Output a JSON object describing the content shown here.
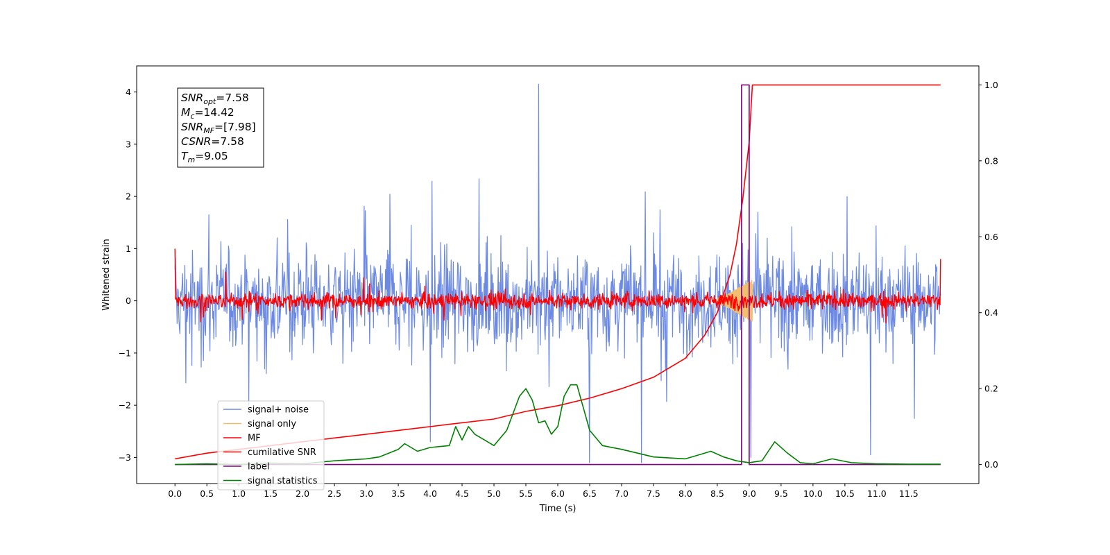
{
  "chart_data": {
    "type": "line",
    "title": "",
    "xlabel": "Time (s)",
    "ylabel": "Whitened strain",
    "ylabel_right": "",
    "xlim": [
      -0.6,
      12.6
    ],
    "ylim": [
      -3.5,
      4.5
    ],
    "ylim_right": [
      -0.05,
      1.05
    ],
    "x_ticks": [
      0.0,
      0.5,
      1.0,
      1.5,
      2.0,
      2.5,
      3.0,
      3.5,
      4.0,
      4.5,
      5.0,
      5.5,
      6.0,
      6.5,
      7.0,
      7.5,
      8.0,
      8.5,
      9.0,
      9.5,
      10.0,
      10.5,
      11.0,
      11.5
    ],
    "x_tick_labels": [
      "0.0",
      "0.5",
      "1.0",
      "1.5",
      "2.0",
      "2.5",
      "3.0",
      "3.5",
      "4.0",
      "4.5",
      "5.0",
      "5.5",
      "6.0",
      "6.5",
      "7.0",
      "7.5",
      "8.0",
      "8.5",
      "9.0",
      "9.5",
      "10.0",
      "10.5",
      "11.0",
      "11.5"
    ],
    "y_ticks": [
      -3,
      -2,
      -1,
      0,
      1,
      2,
      3,
      4
    ],
    "y_tick_labels": [
      "−3",
      "−2",
      "−1",
      "0",
      "1",
      "2",
      "3",
      "4"
    ],
    "y_ticks_right": [
      0.0,
      0.2,
      0.4,
      0.6,
      0.8,
      1.0
    ],
    "y_tick_labels_right": [
      "0.0",
      "0.2",
      "0.4",
      "0.6",
      "0.8",
      "1.0"
    ],
    "grid": false,
    "legend_placement": "lower-left",
    "annotation": {
      "lines": [
        {
          "sym": "SNR",
          "sub": "opt",
          "value": "=7.58"
        },
        {
          "sym": "M",
          "sub": "c",
          "value": "=14.42"
        },
        {
          "sym": "SNR",
          "sub": "MF",
          "value": "=[7.98]"
        },
        {
          "sym": "CSNR",
          "sub": "",
          "value": "=7.58"
        },
        {
          "sym": "T",
          "sub": "m",
          "value": "=9.05"
        }
      ]
    },
    "series": [
      {
        "name": "signal+ noise",
        "axis": "left",
        "color": "#6c8ae4",
        "kind": "noise",
        "x_range": [
          0.0,
          12.0
        ],
        "n_points": 1400,
        "std": 0.75,
        "spikes": [
          [
            5.7,
            4.15
          ],
          [
            6.5,
            -3.1
          ],
          [
            9.03,
            -3.0
          ],
          [
            10.9,
            -2.95
          ],
          [
            4.0,
            -2.7
          ]
        ]
      },
      {
        "name": "signal only",
        "axis": "left",
        "color": "#f0c070",
        "kind": "chirp",
        "x_range": [
          8.5,
          9.05
        ],
        "envelope": [
          [
            8.5,
            0.05
          ],
          [
            8.7,
            0.15
          ],
          [
            8.9,
            0.3
          ],
          [
            9.05,
            0.4
          ]
        ]
      },
      {
        "name": "MF",
        "axis": "left",
        "color": "#ff0000",
        "kind": "noise",
        "x_range": [
          0.0,
          12.0
        ],
        "n_points": 1400,
        "std": 0.12,
        "spikes": [
          [
            0.0,
            1.0
          ],
          [
            0.8,
            0.55
          ],
          [
            12.0,
            0.8
          ]
        ]
      },
      {
        "name": "cumilative SNR",
        "axis": "right",
        "color": "#ff0000",
        "x": [
          0.0,
          0.5,
          1.0,
          1.5,
          2.0,
          2.5,
          3.0,
          3.5,
          4.0,
          4.5,
          5.0,
          5.5,
          6.0,
          6.5,
          7.0,
          7.5,
          8.0,
          8.3,
          8.5,
          8.7,
          8.8,
          8.9,
          9.0,
          9.05,
          10.0,
          11.0,
          12.0
        ],
        "y": [
          0.015,
          0.03,
          0.04,
          0.05,
          0.06,
          0.07,
          0.08,
          0.09,
          0.1,
          0.11,
          0.12,
          0.14,
          0.155,
          0.175,
          0.2,
          0.23,
          0.28,
          0.34,
          0.4,
          0.5,
          0.58,
          0.7,
          0.85,
          1.0,
          1.0,
          1.0,
          1.0
        ]
      },
      {
        "name": "label",
        "axis": "right",
        "color": "#800080",
        "x": [
          0.0,
          8.88,
          8.88,
          8.95,
          8.95,
          9.0,
          9.0,
          12.0
        ],
        "y": [
          0.0,
          0.0,
          1.0,
          1.0,
          1.0,
          1.0,
          0.0,
          0.0
        ]
      },
      {
        "name": "signal statistics",
        "axis": "right",
        "color": "#008000",
        "x": [
          0.0,
          0.5,
          1.0,
          1.5,
          2.0,
          2.5,
          3.0,
          3.2,
          3.5,
          3.6,
          3.8,
          4.0,
          4.3,
          4.4,
          4.5,
          4.6,
          4.7,
          4.9,
          5.0,
          5.2,
          5.4,
          5.5,
          5.6,
          5.7,
          5.8,
          5.9,
          6.0,
          6.1,
          6.2,
          6.3,
          6.4,
          6.5,
          6.7,
          7.0,
          7.5,
          8.0,
          8.2,
          8.4,
          8.6,
          8.8,
          9.0,
          9.2,
          9.4,
          9.6,
          9.8,
          10.0,
          10.3,
          10.6,
          11.0,
          11.5,
          12.0
        ],
        "y": [
          0.0,
          0.002,
          0.0,
          0.004,
          0.002,
          0.01,
          0.015,
          0.02,
          0.04,
          0.055,
          0.035,
          0.045,
          0.05,
          0.1,
          0.065,
          0.1,
          0.08,
          0.06,
          0.05,
          0.09,
          0.18,
          0.2,
          0.17,
          0.11,
          0.115,
          0.08,
          0.1,
          0.18,
          0.21,
          0.21,
          0.15,
          0.09,
          0.05,
          0.04,
          0.02,
          0.015,
          0.025,
          0.035,
          0.02,
          0.01,
          0.005,
          0.01,
          0.06,
          0.03,
          0.005,
          0.002,
          0.015,
          0.005,
          0.002,
          0.001,
          0.001
        ]
      }
    ]
  }
}
